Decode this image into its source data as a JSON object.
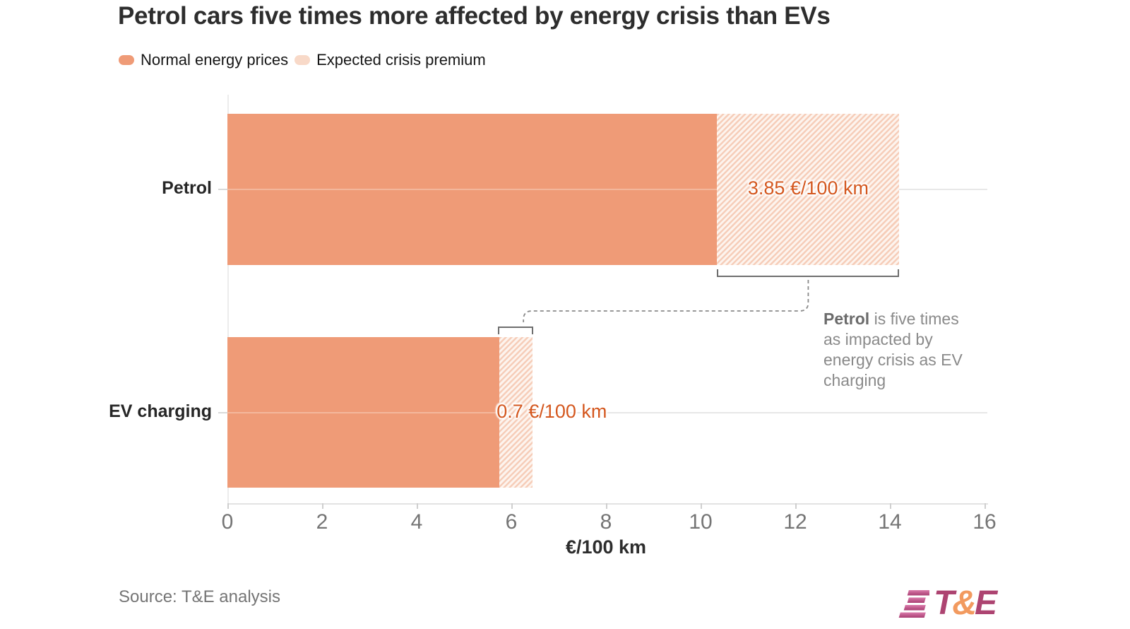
{
  "title": "Petrol cars five times more affected by energy crisis than EVs",
  "legend": [
    {
      "label": "Normal energy prices",
      "style": "solid"
    },
    {
      "label": "Expected crisis premium",
      "style": "light"
    }
  ],
  "chart_data": {
    "type": "bar",
    "orientation": "horizontal",
    "stacked": true,
    "categories": [
      "Petrol",
      "EV charging"
    ],
    "series": [
      {
        "name": "Normal energy prices",
        "values": [
          10.35,
          5.75
        ]
      },
      {
        "name": "Expected crisis premium",
        "values": [
          3.85,
          0.7
        ]
      }
    ],
    "totals": [
      14.2,
      6.45
    ],
    "bar_labels": [
      "3.85 €/100 km",
      "0.7 €/100 km"
    ],
    "x_ticks": [
      "0",
      "2",
      "4",
      "6",
      "8",
      "10",
      "12",
      "14",
      "16"
    ],
    "xlim": [
      0,
      16
    ],
    "xlabel": "€/100 km",
    "grid": "horizontal category lines",
    "legend_position": "top-left",
    "annotation": {
      "lead": "Petrol",
      "text": " is five times\nas impacted by\nenergy crisis as EV\ncharging"
    }
  },
  "footer": {
    "source": "Source: T&E analysis",
    "logo": {
      "t": "T",
      "amp": "&",
      "e": "E"
    }
  },
  "colors": {
    "bar": "#EF9B77",
    "legend_light": "#F8D9C8",
    "hatch_stripe": "#F6CDB9",
    "hatch_bg": "#FDF4EE",
    "value_label": "#D4571E",
    "bracket": "#6e6e6e",
    "dashed_connector": "#8a8a8a",
    "logo_plum": "#AD4471",
    "logo_orange": "#F29A5F"
  }
}
